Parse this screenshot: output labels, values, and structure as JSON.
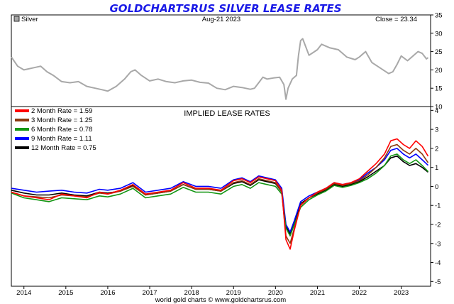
{
  "chart_data": [
    {
      "type": "line",
      "title": "GOLDCHARTSRUS SILVER LEASE RATES",
      "legend": "Silver",
      "date_label": "Aug-21  2023",
      "close_label": "Close = 23.34",
      "ylim": [
        10,
        35
      ],
      "y_ticks": [
        "10",
        "15",
        "20",
        "25",
        "30",
        "35"
      ],
      "series": [
        {
          "name": "Silver",
          "color": "#a8a8a8",
          "x": [
            2013.7,
            2013.85,
            2014.0,
            2014.2,
            2014.4,
            2014.55,
            2014.7,
            2014.9,
            2015.1,
            2015.3,
            2015.5,
            2015.7,
            2015.9,
            2016.0,
            2016.2,
            2016.4,
            2016.55,
            2016.65,
            2016.8,
            2017.0,
            2017.2,
            2017.4,
            2017.6,
            2017.8,
            2018.0,
            2018.2,
            2018.4,
            2018.6,
            2018.8,
            2019.0,
            2019.2,
            2019.4,
            2019.5,
            2019.6,
            2019.7,
            2019.8,
            2019.95,
            2020.1,
            2020.2,
            2020.25,
            2020.3,
            2020.4,
            2020.5,
            2020.55,
            2020.6,
            2020.65,
            2020.8,
            2021.0,
            2021.1,
            2021.3,
            2021.5,
            2021.7,
            2021.9,
            2022.0,
            2022.15,
            2022.3,
            2022.5,
            2022.7,
            2022.8,
            2022.9,
            2023.0,
            2023.15,
            2023.3,
            2023.4,
            2023.5,
            2023.6,
            2023.64
          ],
          "values": [
            23.5,
            21.0,
            20.0,
            20.5,
            21.0,
            19.5,
            18.5,
            16.8,
            16.5,
            16.8,
            15.5,
            15.0,
            14.5,
            14.2,
            15.5,
            17.5,
            19.5,
            20.0,
            18.5,
            17.0,
            17.5,
            16.8,
            16.5,
            17.0,
            17.2,
            16.6,
            16.4,
            15.0,
            14.6,
            15.5,
            15.2,
            14.7,
            15.0,
            16.5,
            18.0,
            17.5,
            17.8,
            18.0,
            16.0,
            12.0,
            15.0,
            17.5,
            18.5,
            24.0,
            28.0,
            28.5,
            24.0,
            25.5,
            27.0,
            26.0,
            25.5,
            23.5,
            22.8,
            23.5,
            25.0,
            22.0,
            20.5,
            19.0,
            19.5,
            21.5,
            23.8,
            22.5,
            24.0,
            25.0,
            24.5,
            23.0,
            23.34
          ]
        }
      ]
    },
    {
      "type": "line",
      "title": "IMPLIED LEASE RATES",
      "ylim": [
        -5,
        4
      ],
      "y_ticks": [
        "-5",
        "-4",
        "-3",
        "-2",
        "-1",
        "0",
        "1",
        "2",
        "3",
        "4"
      ],
      "x_ticks": [
        "2014",
        "2015",
        "2016",
        "2017",
        "2018",
        "2019",
        "2020",
        "2021",
        "2022",
        "2023"
      ],
      "footer": "world gold charts © www.goldchartsrus.com",
      "x": [
        2013.7,
        2014.0,
        2014.3,
        2014.6,
        2014.9,
        2015.2,
        2015.5,
        2015.8,
        2016.0,
        2016.3,
        2016.6,
        2016.9,
        2017.2,
        2017.5,
        2017.8,
        2018.1,
        2018.4,
        2018.7,
        2019.0,
        2019.2,
        2019.4,
        2019.6,
        2019.8,
        2020.0,
        2020.15,
        2020.25,
        2020.35,
        2020.45,
        2020.6,
        2020.8,
        2021.0,
        2021.2,
        2021.4,
        2021.6,
        2021.8,
        2022.0,
        2022.2,
        2022.4,
        2022.6,
        2022.75,
        2022.9,
        2023.05,
        2023.2,
        2023.35,
        2023.5,
        2023.64
      ],
      "series": [
        {
          "name": "2 Month Rate",
          "legend_label": "2 Month Rate  = 1.59",
          "color": "#ff0000",
          "values": [
            -0.3,
            -0.5,
            -0.6,
            -0.7,
            -0.4,
            -0.5,
            -0.6,
            -0.3,
            -0.4,
            -0.2,
            0.1,
            -0.4,
            -0.3,
            -0.2,
            0.2,
            -0.1,
            -0.1,
            -0.2,
            0.3,
            0.4,
            0.2,
            0.5,
            0.4,
            0.3,
            -0.2,
            -2.8,
            -3.3,
            -2.3,
            -1.0,
            -0.6,
            -0.3,
            -0.1,
            0.2,
            0.1,
            0.2,
            0.4,
            0.8,
            1.2,
            1.7,
            2.4,
            2.5,
            2.2,
            2.0,
            2.4,
            2.1,
            1.59
          ]
        },
        {
          "name": "3 Month Rate",
          "legend_label": "3 Month Rate  = 1.25",
          "color": "#8b3a0f",
          "values": [
            -0.3,
            -0.5,
            -0.55,
            -0.6,
            -0.45,
            -0.5,
            -0.55,
            -0.35,
            -0.4,
            -0.25,
            0.0,
            -0.45,
            -0.35,
            -0.25,
            0.1,
            -0.15,
            -0.15,
            -0.25,
            0.2,
            0.3,
            0.1,
            0.4,
            0.3,
            0.2,
            -0.3,
            -2.6,
            -3.0,
            -2.2,
            -1.0,
            -0.6,
            -0.35,
            -0.15,
            0.15,
            0.05,
            0.15,
            0.3,
            0.6,
            1.0,
            1.5,
            2.1,
            2.2,
            1.9,
            1.7,
            2.0,
            1.7,
            1.25
          ]
        },
        {
          "name": "6 Month Rate",
          "legend_label": "6 Month Rate  = 0.78",
          "color": "#139613",
          "values": [
            -0.35,
            -0.6,
            -0.7,
            -0.8,
            -0.6,
            -0.65,
            -0.7,
            -0.5,
            -0.55,
            -0.4,
            -0.1,
            -0.6,
            -0.5,
            -0.4,
            -0.05,
            -0.3,
            -0.3,
            -0.4,
            0.0,
            0.1,
            -0.1,
            0.2,
            0.1,
            0.0,
            -0.4,
            -2.2,
            -2.6,
            -2.0,
            -1.1,
            -0.7,
            -0.45,
            -0.25,
            0.05,
            -0.05,
            0.05,
            0.2,
            0.4,
            0.7,
            1.1,
            1.6,
            1.7,
            1.4,
            1.2,
            1.4,
            1.1,
            0.78
          ]
        },
        {
          "name": "9 Month Rate",
          "legend_label": "9 Month Rate  = 1.11",
          "color": "#0000ff",
          "values": [
            -0.1,
            -0.2,
            -0.3,
            -0.25,
            -0.2,
            -0.3,
            -0.35,
            -0.15,
            -0.2,
            -0.1,
            0.2,
            -0.3,
            -0.2,
            -0.1,
            0.25,
            0.0,
            0.0,
            -0.1,
            0.35,
            0.45,
            0.25,
            0.55,
            0.45,
            0.35,
            -0.1,
            -2.0,
            -2.4,
            -1.8,
            -0.8,
            -0.5,
            -0.3,
            -0.1,
            0.2,
            0.1,
            0.2,
            0.35,
            0.7,
            1.0,
            1.4,
            1.9,
            2.0,
            1.7,
            1.5,
            1.7,
            1.4,
            1.11
          ]
        },
        {
          "name": "12 Month Rate",
          "legend_label": "12 Month Rate  = 0.75",
          "color": "#000000",
          "values": [
            -0.2,
            -0.35,
            -0.45,
            -0.45,
            -0.35,
            -0.45,
            -0.5,
            -0.3,
            -0.35,
            -0.25,
            0.05,
            -0.45,
            -0.35,
            -0.25,
            0.1,
            -0.15,
            -0.15,
            -0.25,
            0.15,
            0.25,
            0.05,
            0.35,
            0.25,
            0.15,
            -0.3,
            -2.1,
            -2.5,
            -1.9,
            -0.9,
            -0.6,
            -0.4,
            -0.2,
            0.1,
            0.0,
            0.1,
            0.25,
            0.5,
            0.8,
            1.1,
            1.5,
            1.6,
            1.3,
            1.1,
            1.2,
            1.0,
            0.75
          ]
        }
      ]
    }
  ]
}
